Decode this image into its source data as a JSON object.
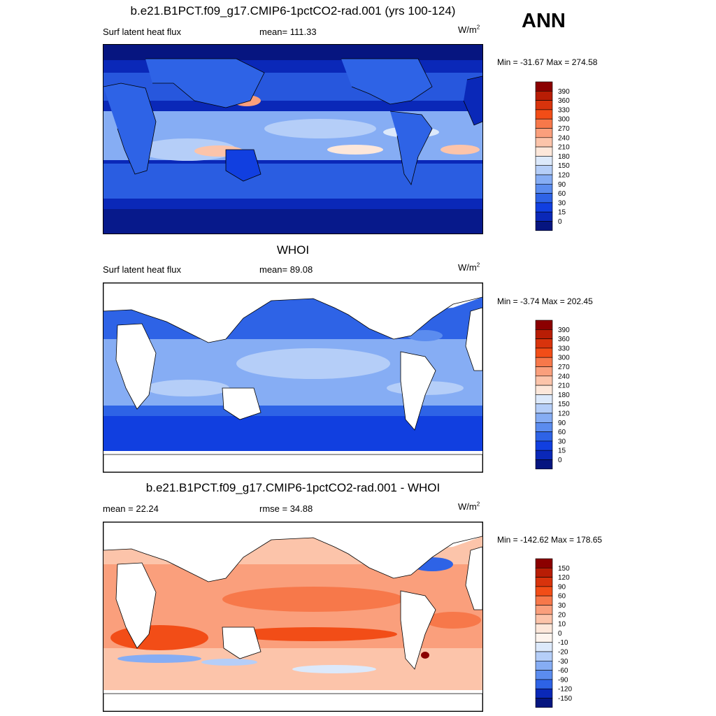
{
  "season": "ANN",
  "panels": [
    {
      "title": "b.e21.B1PCT.f09_g17.CMIP6-1pctCO2-rad.001 (yrs 100-124)",
      "left_label": "Surf latent heat flux",
      "center_label": "mean= 111.33",
      "units": "W/m",
      "units_sup": "2",
      "minmax": "Min = -31.67 Max = 274.58",
      "colorbar": {
        "labels": [
          "390",
          "360",
          "330",
          "300",
          "270",
          "240",
          "210",
          "180",
          "150",
          "120",
          "90",
          "60",
          "30",
          "15",
          "0"
        ],
        "colors": [
          "#8b0000",
          "#b81d05",
          "#d8330c",
          "#f24d17",
          "#f7784a",
          "#fa9f7c",
          "#fcc4aa",
          "#fde7da",
          "#dce9fb",
          "#b5cef8",
          "#86adf4",
          "#5b8cef",
          "#2e63e6",
          "#113fe0",
          "#0a28b8",
          "#061580"
        ]
      }
    },
    {
      "title": "WHOI",
      "left_label": "Surf latent heat flux",
      "center_label": "mean=  89.08",
      "units": "W/m",
      "units_sup": "2",
      "minmax": "Min =  -3.74 Max = 202.45",
      "colorbar": {
        "labels": [
          "390",
          "360",
          "330",
          "300",
          "270",
          "240",
          "210",
          "180",
          "150",
          "120",
          "90",
          "60",
          "30",
          "15",
          "0"
        ],
        "colors": [
          "#8b0000",
          "#b81d05",
          "#d8330c",
          "#f24d17",
          "#f7784a",
          "#fa9f7c",
          "#fcc4aa",
          "#fde7da",
          "#dce9fb",
          "#b5cef8",
          "#86adf4",
          "#5b8cef",
          "#2e63e6",
          "#113fe0",
          "#0a28b8",
          "#061580"
        ]
      }
    },
    {
      "title": "b.e21.B1PCT.f09_g17.CMIP6-1pctCO2-rad.001 - WHOI",
      "left_label": "mean =  22.24",
      "center_label": "rmse =  34.88",
      "units": "W/m",
      "units_sup": "2",
      "minmax": "Min = -142.62 Max = 178.65",
      "colorbar": {
        "labels": [
          "150",
          "120",
          "90",
          "60",
          "30",
          "20",
          "10",
          "0",
          "-10",
          "-20",
          "-30",
          "-60",
          "-90",
          "-120",
          "-150"
        ],
        "colors": [
          "#8b0000",
          "#b81d05",
          "#d8330c",
          "#f24d17",
          "#f7784a",
          "#fa9f7c",
          "#fcc4aa",
          "#fde7da",
          "#fdf4ee",
          "#dce9fb",
          "#b5cef8",
          "#86adf4",
          "#5b8cef",
          "#2e63e6",
          "#0a28b8",
          "#061580"
        ]
      }
    }
  ]
}
